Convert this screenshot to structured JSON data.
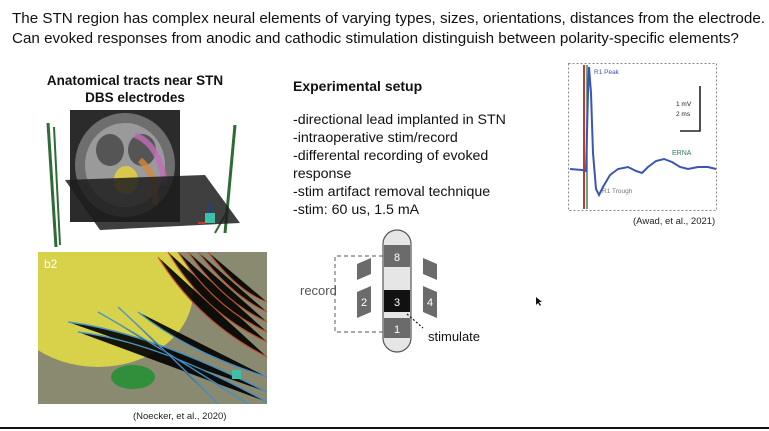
{
  "slide": {
    "intro_lines": [
      "The STN region has complex neural elements of varying types, sizes, orientations, distances from the electrode.",
      "Can evoked responses from anodic and cathodic stimulation distinguish between polarity-specific elements?"
    ],
    "anatomy_title": [
      "Anatomical tracts near STN",
      "DBS electrodes"
    ],
    "anatomy_panel_label": "b2",
    "anatomy_citation": "(Noecker, et al., 2020)",
    "setup_title": "Experimental setup",
    "setup_items": [
      "-directional lead implanted in STN",
      "-intraoperative stim/record",
      "-differental recording of evoked response",
      "-stim artifact removal technique",
      "-stim: 60 us, 1.5 mA"
    ],
    "lead": {
      "record_label": "record",
      "stimulate_label": "stimulate",
      "contacts": [
        "8",
        "2",
        "3",
        "4",
        "1"
      ]
    },
    "ernaplot": {
      "peak_label": "R1 Peak",
      "trough_label": "R1 Trough",
      "erna_label": "ERNA",
      "scale_mv": "1 mV",
      "scale_ms": "2 ms",
      "citation": "(Awad, et al., 2021)",
      "colors": {
        "trace": "#3a55b4",
        "peak_line": "#c0392b",
        "erna": "#2e7d5b"
      }
    }
  }
}
